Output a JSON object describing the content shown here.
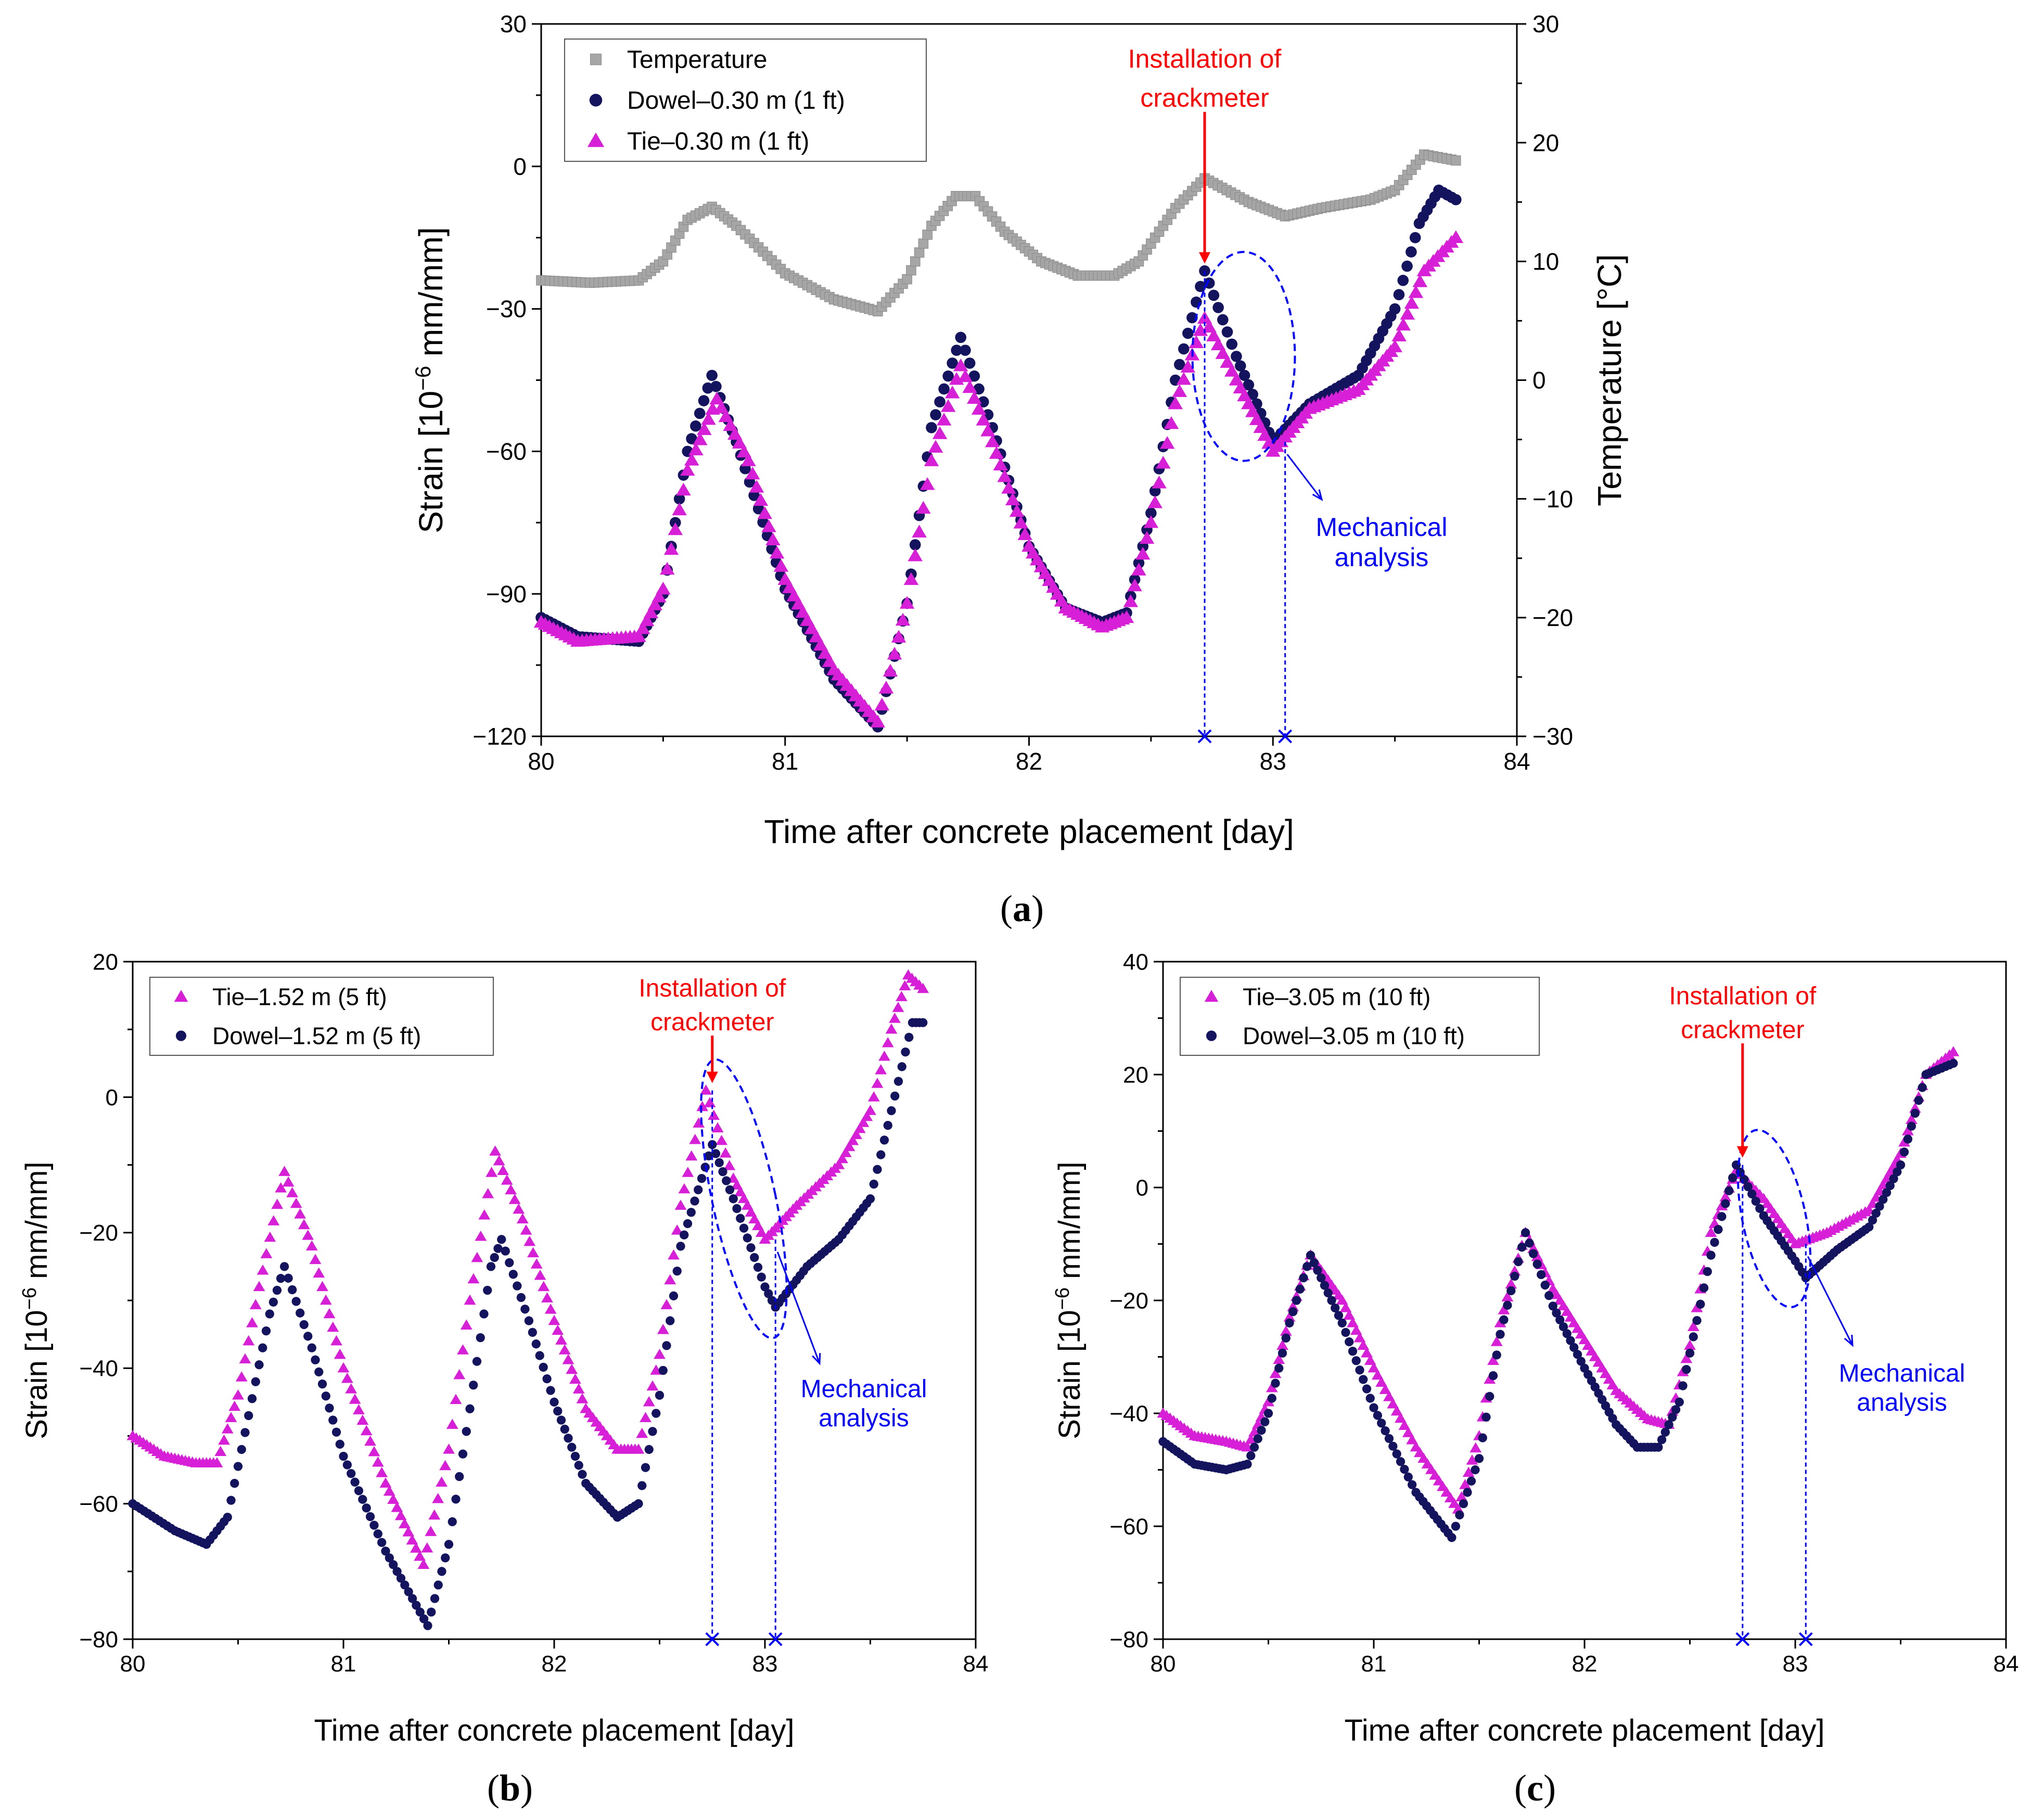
{
  "figure_labels": {
    "a": "a",
    "b": "b",
    "c": "c"
  },
  "colors": {
    "temperature": "#a6a6a6",
    "dowel": "#14145e",
    "tie": "#d81fd8",
    "installation": "#ff0000",
    "analysis": "#0000ff",
    "axis": "#000000"
  },
  "chart_data": [
    {
      "id": "a",
      "type": "scatter",
      "xlabel": "Time after concrete placement [day]",
      "ylabel_prefix": "Strain [10",
      "ylabel_exp": "−6",
      "ylabel_suffix": " mm/mm]",
      "y2label": "Temperature [°C]",
      "xlim": [
        80,
        84
      ],
      "ylim": [
        -120,
        30
      ],
      "y2lim": [
        -30,
        30
      ],
      "xticks": [
        80,
        81,
        82,
        83,
        84
      ],
      "xtick_labels": [
        "80",
        "81",
        "82",
        "83",
        "84"
      ],
      "yticks": [
        -120,
        -90,
        -60,
        -30,
        0,
        30
      ],
      "ytick_labels": [
        "−120",
        "−90",
        "−60",
        "−30",
        "0",
        "30"
      ],
      "y2ticks": [
        -30,
        -20,
        -10,
        0,
        10,
        20,
        30
      ],
      "y2tick_labels": [
        "−30",
        "−20",
        "−10",
        "0",
        "10",
        "20",
        "30"
      ],
      "legend": [
        "Temperature",
        "Dowel–0.30 m (1 ft)",
        "Tie–0.30 m (1 ft)"
      ],
      "annotation_install": [
        "Installation of",
        "crackmeter"
      ],
      "annotation_analysis": [
        "Mechanical",
        "analysis"
      ],
      "install_x": 82.72,
      "analysis_x": 83.05,
      "ellipse": {
        "cx": 82.88,
        "cy": -40,
        "rx": 0.21,
        "ry": 22,
        "rotate_deg": 0
      },
      "series": [
        {
          "name": "Temperature",
          "axis": "y2",
          "marker": "square",
          "color_key": "temperature",
          "points": [
            [
              80.0,
              8.4
            ],
            [
              80.2,
              8.2
            ],
            [
              80.4,
              8.4
            ],
            [
              80.5,
              10.0
            ],
            [
              80.6,
              13.5
            ],
            [
              80.7,
              14.6
            ],
            [
              80.8,
              13.0
            ],
            [
              81.0,
              9.0
            ],
            [
              81.2,
              6.8
            ],
            [
              81.38,
              5.8
            ],
            [
              81.5,
              8.5
            ],
            [
              81.6,
              13.0
            ],
            [
              81.7,
              15.5
            ],
            [
              81.78,
              15.5
            ],
            [
              81.9,
              12.5
            ],
            [
              82.05,
              10.0
            ],
            [
              82.2,
              8.8
            ],
            [
              82.35,
              8.8
            ],
            [
              82.45,
              10.0
            ],
            [
              82.6,
              14.5
            ],
            [
              82.72,
              17.0
            ],
            [
              82.9,
              15.0
            ],
            [
              83.05,
              13.8
            ],
            [
              83.2,
              14.5
            ],
            [
              83.4,
              15.2
            ],
            [
              83.5,
              16.0
            ],
            [
              83.62,
              19.0
            ],
            [
              83.75,
              18.5
            ]
          ]
        },
        {
          "name": "Dowel–0.30 m (1 ft)",
          "axis": "y",
          "marker": "circle",
          "color_key": "dowel",
          "points": [
            [
              80.0,
              -95
            ],
            [
              80.15,
              -99
            ],
            [
              80.4,
              -100
            ],
            [
              80.5,
              -90
            ],
            [
              80.6,
              -60
            ],
            [
              80.7,
              -44
            ],
            [
              80.8,
              -58
            ],
            [
              81.0,
              -89
            ],
            [
              81.2,
              -108
            ],
            [
              81.38,
              -118
            ],
            [
              81.5,
              -92
            ],
            [
              81.6,
              -55
            ],
            [
              81.72,
              -36
            ],
            [
              81.85,
              -55
            ],
            [
              82.0,
              -80
            ],
            [
              82.15,
              -93
            ],
            [
              82.3,
              -96
            ],
            [
              82.4,
              -94
            ],
            [
              82.5,
              -73
            ],
            [
              82.6,
              -45
            ],
            [
              82.72,
              -22
            ],
            [
              82.85,
              -40
            ],
            [
              83.0,
              -58
            ],
            [
              83.15,
              -50
            ],
            [
              83.35,
              -44
            ],
            [
              83.5,
              -30
            ],
            [
              83.6,
              -12
            ],
            [
              83.68,
              -5
            ],
            [
              83.75,
              -7
            ]
          ]
        },
        {
          "name": "Tie–0.30 m (1 ft)",
          "axis": "y",
          "marker": "triangle",
          "color_key": "tie",
          "points": [
            [
              80.0,
              -96
            ],
            [
              80.15,
              -100
            ],
            [
              80.4,
              -99
            ],
            [
              80.5,
              -89
            ],
            [
              80.6,
              -64
            ],
            [
              80.72,
              -49
            ],
            [
              80.85,
              -62
            ],
            [
              81.0,
              -87
            ],
            [
              81.2,
              -106
            ],
            [
              81.38,
              -117
            ],
            [
              81.5,
              -92
            ],
            [
              81.6,
              -62
            ],
            [
              81.72,
              -42
            ],
            [
              81.85,
              -58
            ],
            [
              82.0,
              -80
            ],
            [
              82.15,
              -93
            ],
            [
              82.3,
              -97
            ],
            [
              82.4,
              -95
            ],
            [
              82.5,
              -75
            ],
            [
              82.6,
              -50
            ],
            [
              82.72,
              -32
            ],
            [
              82.85,
              -45
            ],
            [
              83.0,
              -60
            ],
            [
              83.15,
              -51
            ],
            [
              83.35,
              -47
            ],
            [
              83.5,
              -38
            ],
            [
              83.62,
              -22
            ],
            [
              83.75,
              -15
            ]
          ]
        }
      ]
    },
    {
      "id": "b",
      "type": "scatter",
      "xlabel": "Time after concrete placement [day]",
      "ylabel_prefix": "Strain [10",
      "ylabel_exp": "−6",
      "ylabel_suffix": " mm/mm]",
      "xlim": [
        80,
        84
      ],
      "ylim": [
        -80,
        20
      ],
      "xticks": [
        80,
        81,
        82,
        83,
        84
      ],
      "xtick_labels": [
        "80",
        "81",
        "82",
        "83",
        "84"
      ],
      "yticks": [
        -80,
        -60,
        -40,
        -20,
        0,
        20
      ],
      "ytick_labels": [
        "−80",
        "−60",
        "−40",
        "−20",
        "0",
        "20"
      ],
      "legend": [
        "Tie–1.52 m (5 ft)",
        "Dowel–1.52 m (5 ft)"
      ],
      "annotation_install": [
        "Installation of",
        "crackmeter"
      ],
      "annotation_analysis": [
        "Mechanical",
        "analysis"
      ],
      "install_x": 82.75,
      "analysis_x": 83.05,
      "ellipse": {
        "cx": 82.9,
        "cy": -15,
        "rx": 0.15,
        "ry": 21,
        "rotate_deg": -12
      },
      "series": [
        {
          "name": "Tie–1.52 m (5 ft)",
          "axis": "y",
          "marker": "triangle",
          "color_key": "tie",
          "points": [
            [
              80.0,
              -50
            ],
            [
              80.15,
              -53
            ],
            [
              80.3,
              -54
            ],
            [
              80.4,
              -54
            ],
            [
              80.5,
              -44
            ],
            [
              80.6,
              -28
            ],
            [
              80.72,
              -11
            ],
            [
              80.85,
              -22
            ],
            [
              81.0,
              -40
            ],
            [
              81.2,
              -57
            ],
            [
              81.38,
              -69
            ],
            [
              81.5,
              -52
            ],
            [
              81.6,
              -30
            ],
            [
              81.72,
              -8
            ],
            [
              81.85,
              -18
            ],
            [
              82.0,
              -33
            ],
            [
              82.15,
              -46
            ],
            [
              82.3,
              -52
            ],
            [
              82.4,
              -52
            ],
            [
              82.5,
              -38
            ],
            [
              82.6,
              -16
            ],
            [
              82.72,
              1
            ],
            [
              82.85,
              -12
            ],
            [
              83.0,
              -21
            ],
            [
              83.15,
              -16
            ],
            [
              83.35,
              -10
            ],
            [
              83.5,
              -2
            ],
            [
              83.6,
              10
            ],
            [
              83.68,
              18
            ],
            [
              83.75,
              16
            ]
          ]
        },
        {
          "name": "Dowel–1.52 m (5 ft)",
          "axis": "y",
          "marker": "circle",
          "color_key": "dowel",
          "points": [
            [
              80.0,
              -60
            ],
            [
              80.2,
              -64
            ],
            [
              80.35,
              -66
            ],
            [
              80.45,
              -62
            ],
            [
              80.55,
              -47
            ],
            [
              80.65,
              -32
            ],
            [
              80.72,
              -25
            ],
            [
              80.85,
              -37
            ],
            [
              81.0,
              -53
            ],
            [
              81.2,
              -67
            ],
            [
              81.4,
              -78
            ],
            [
              81.5,
              -66
            ],
            [
              81.6,
              -46
            ],
            [
              81.7,
              -25
            ],
            [
              81.75,
              -21
            ],
            [
              81.88,
              -33
            ],
            [
              82.0,
              -45
            ],
            [
              82.15,
              -57
            ],
            [
              82.3,
              -62
            ],
            [
              82.4,
              -60
            ],
            [
              82.5,
              -44
            ],
            [
              82.6,
              -22
            ],
            [
              82.75,
              -7
            ],
            [
              82.85,
              -15
            ],
            [
              83.0,
              -28
            ],
            [
              83.05,
              -31
            ],
            [
              83.2,
              -25
            ],
            [
              83.35,
              -21
            ],
            [
              83.5,
              -15
            ],
            [
              83.6,
              -2
            ],
            [
              83.7,
              11
            ],
            [
              83.75,
              11
            ]
          ]
        }
      ]
    },
    {
      "id": "c",
      "type": "scatter",
      "xlabel": "Time after concrete placement [day]",
      "ylabel_prefix": "Strain [10",
      "ylabel_exp": "−6",
      "ylabel_suffix": " mm/mm]",
      "xlim": [
        80,
        84
      ],
      "ylim": [
        -80,
        40
      ],
      "xticks": [
        80,
        81,
        82,
        83,
        84
      ],
      "xtick_labels": [
        "80",
        "81",
        "82",
        "83",
        "84"
      ],
      "yticks": [
        -80,
        -60,
        -40,
        -20,
        0,
        20,
        40
      ],
      "ytick_labels": [
        "−80",
        "−60",
        "−40",
        "−20",
        "0",
        "20",
        "40"
      ],
      "legend": [
        "Tie–3.05 m (10 ft)",
        "Dowel–3.05 m (10 ft)"
      ],
      "annotation_install": [
        "Installation of",
        "crackmeter"
      ],
      "annotation_analysis": [
        "Mechanical",
        "analysis"
      ],
      "install_x": 82.75,
      "analysis_x": 83.05,
      "ellipse": {
        "cx": 82.9,
        "cy": -5.5,
        "rx": 0.15,
        "ry": 16,
        "rotate_deg": -12
      },
      "series": [
        {
          "name": "Tie–3.05 m (10 ft)",
          "axis": "y",
          "marker": "triangle",
          "color_key": "tie",
          "points": [
            [
              80.0,
              -40
            ],
            [
              80.15,
              -44
            ],
            [
              80.3,
              -45
            ],
            [
              80.4,
              -46
            ],
            [
              80.5,
              -38
            ],
            [
              80.6,
              -23
            ],
            [
              80.7,
              -12
            ],
            [
              80.85,
              -20
            ],
            [
              81.0,
              -32
            ],
            [
              81.2,
              -46
            ],
            [
              81.4,
              -57
            ],
            [
              81.5,
              -44
            ],
            [
              81.6,
              -24
            ],
            [
              81.72,
              -8
            ],
            [
              81.85,
              -18
            ],
            [
              82.0,
              -27
            ],
            [
              82.15,
              -36
            ],
            [
              82.3,
              -41
            ],
            [
              82.4,
              -42
            ],
            [
              82.5,
              -28
            ],
            [
              82.6,
              -8
            ],
            [
              82.72,
              3
            ],
            [
              82.85,
              -2
            ],
            [
              83.0,
              -10
            ],
            [
              83.15,
              -8
            ],
            [
              83.35,
              -4
            ],
            [
              83.5,
              6
            ],
            [
              83.62,
              20
            ],
            [
              83.75,
              24
            ]
          ]
        },
        {
          "name": "Dowel–3.05 m (10 ft)",
          "axis": "y",
          "marker": "circle",
          "color_key": "dowel",
          "points": [
            [
              80.0,
              -45
            ],
            [
              80.15,
              -49
            ],
            [
              80.3,
              -50
            ],
            [
              80.4,
              -49
            ],
            [
              80.5,
              -40
            ],
            [
              80.6,
              -24
            ],
            [
              80.7,
              -12
            ],
            [
              80.85,
              -24
            ],
            [
              81.0,
              -39
            ],
            [
              81.2,
              -54
            ],
            [
              81.37,
              -62
            ],
            [
              81.5,
              -48
            ],
            [
              81.6,
              -26
            ],
            [
              81.72,
              -8
            ],
            [
              81.85,
              -21
            ],
            [
              82.0,
              -32
            ],
            [
              82.15,
              -42
            ],
            [
              82.25,
              -46
            ],
            [
              82.35,
              -46
            ],
            [
              82.45,
              -38
            ],
            [
              82.6,
              -12
            ],
            [
              82.72,
              4
            ],
            [
              82.85,
              -5
            ],
            [
              83.0,
              -13
            ],
            [
              83.05,
              -16
            ],
            [
              83.2,
              -11
            ],
            [
              83.35,
              -7
            ],
            [
              83.5,
              4
            ],
            [
              83.62,
              20
            ],
            [
              83.75,
              22
            ]
          ]
        }
      ]
    }
  ]
}
